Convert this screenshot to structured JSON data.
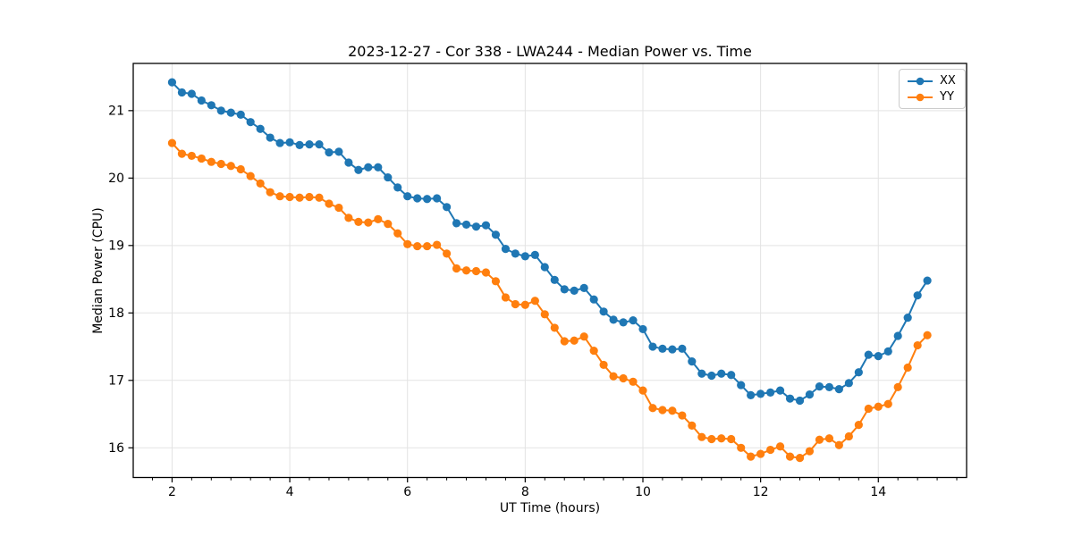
{
  "figure": {
    "title": "2023-12-27 - Cor 338 - LWA244 - Median Power vs. Time"
  },
  "chart_data": {
    "type": "line",
    "title": "2023-12-27 - Cor 338 - LWA244 - Median Power vs. Time",
    "xlabel": "UT Time (hours)",
    "ylabel": "Median Power (CPU)",
    "xlim": [
      1.34,
      15.5
    ],
    "ylim": [
      15.56,
      21.7
    ],
    "x_ticks": [
      2,
      4,
      6,
      8,
      10,
      12,
      14
    ],
    "y_ticks": [
      16,
      17,
      18,
      19,
      20,
      21
    ],
    "x_minor_tick_step": 0.33333,
    "grid": true,
    "legend_position": "upper right",
    "marker": "circle",
    "x": [
      2.0,
      2.167,
      2.333,
      2.5,
      2.667,
      2.833,
      3.0,
      3.167,
      3.333,
      3.5,
      3.667,
      3.833,
      4.0,
      4.167,
      4.333,
      4.5,
      4.667,
      4.833,
      5.0,
      5.167,
      5.333,
      5.5,
      5.667,
      5.833,
      6.0,
      6.167,
      6.333,
      6.5,
      6.667,
      6.833,
      7.0,
      7.167,
      7.333,
      7.5,
      7.667,
      7.833,
      8.0,
      8.167,
      8.333,
      8.5,
      8.667,
      8.833,
      9.0,
      9.167,
      9.333,
      9.5,
      9.667,
      9.833,
      10.0,
      10.167,
      10.333,
      10.5,
      10.667,
      10.833,
      11.0,
      11.167,
      11.333,
      11.5,
      11.667,
      11.833,
      12.0,
      12.167,
      12.333,
      12.5,
      12.667,
      12.833,
      13.0,
      13.167,
      13.333,
      13.5,
      13.667,
      13.833,
      14.0,
      14.167,
      14.333,
      14.5,
      14.667,
      14.833
    ],
    "series": [
      {
        "name": "XX",
        "color": "#1f77b4",
        "values": [
          21.42,
          21.27,
          21.25,
          21.15,
          21.08,
          21.0,
          20.97,
          20.94,
          20.83,
          20.73,
          20.6,
          20.52,
          20.53,
          20.49,
          20.5,
          20.5,
          20.38,
          20.39,
          20.23,
          20.12,
          20.16,
          20.16,
          20.01,
          19.86,
          19.73,
          19.7,
          19.69,
          19.7,
          19.57,
          19.33,
          19.31,
          19.28,
          19.3,
          19.16,
          18.95,
          18.88,
          18.84,
          18.86,
          18.68,
          18.49,
          18.35,
          18.33,
          18.37,
          18.2,
          18.02,
          17.9,
          17.86,
          17.89,
          17.76,
          17.5,
          17.47,
          17.46,
          17.47,
          17.28,
          17.1,
          17.07,
          17.1,
          17.08,
          16.93,
          16.78,
          16.8,
          16.82,
          16.85,
          16.73,
          16.7,
          16.79,
          16.91,
          16.9,
          16.87,
          16.96,
          17.12,
          17.38,
          17.36,
          17.43,
          17.66,
          17.93,
          18.26,
          18.48
        ]
      },
      {
        "name": "YY",
        "color": "#ff7f0e",
        "values": [
          20.52,
          20.36,
          20.33,
          20.29,
          20.24,
          20.21,
          20.18,
          20.13,
          20.03,
          19.92,
          19.79,
          19.73,
          19.72,
          19.71,
          19.72,
          19.71,
          19.62,
          19.56,
          19.41,
          19.35,
          19.34,
          19.39,
          19.32,
          19.18,
          19.02,
          18.99,
          18.99,
          19.01,
          18.88,
          18.66,
          18.63,
          18.62,
          18.6,
          18.47,
          18.23,
          18.13,
          18.12,
          18.18,
          17.98,
          17.78,
          17.58,
          17.59,
          17.65,
          17.44,
          17.23,
          17.06,
          17.03,
          16.98,
          16.85,
          16.59,
          16.56,
          16.55,
          16.48,
          16.33,
          16.16,
          16.13,
          16.14,
          16.13,
          16.0,
          15.87,
          15.91,
          15.97,
          16.02,
          15.87,
          15.85,
          15.95,
          16.12,
          16.14,
          16.04,
          16.17,
          16.34,
          16.58,
          16.61,
          16.65,
          16.9,
          17.19,
          17.52,
          17.67
        ]
      }
    ]
  },
  "style": {
    "grid_color": "#e3e3e3",
    "spine_color": "#000000",
    "tick_color": "#000000",
    "legend_border_color": "#cccccc",
    "line_width": 2,
    "marker_radius": 4.6
  }
}
